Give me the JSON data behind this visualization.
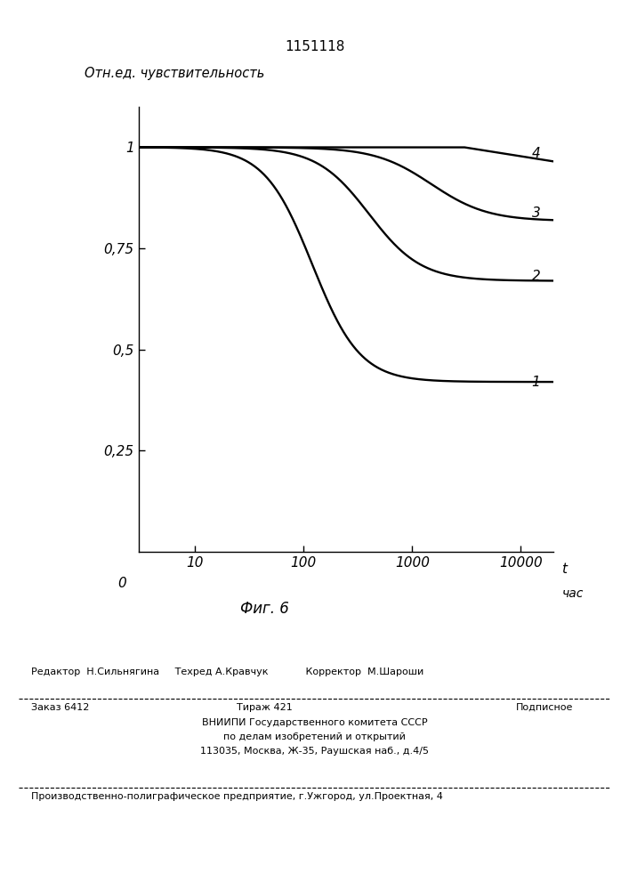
{
  "title": "1151118",
  "ylabel": "Отн.ед. чувствительность",
  "xlabel_t": "t",
  "xlabel_unit": "час",
  "fig_label": "Фиг. 6",
  "xtick_labels": [
    "10",
    "100",
    "1000",
    "10000"
  ],
  "xtick_values": [
    10,
    100,
    1000,
    10000
  ],
  "ytick_labels": [
    "0,25",
    "0,5",
    "0,75",
    "1"
  ],
  "ytick_values": [
    0.25,
    0.5,
    0.75,
    1.0
  ],
  "background_color": "#ffffff",
  "line_color": "#000000",
  "footer_editor": "Редактор  Н.Сильнягина     Техред А.Кравчук            Корректор  М.Шароши",
  "footer_order": "Заказ 6412",
  "footer_tirazh": "Тираж 421",
  "footer_podp": "Подписное",
  "footer_vniip": "ВНИИПИ Государственного комитета СССР",
  "footer_dela": "по делам изобретений и открытий",
  "footer_addr": "113035, Москва, Ж-35, Раушская наб., д.4/5",
  "footer_prod": "Производственно-полиграфическое предприятие, г.Ужгород, ул.Проектная, 4"
}
